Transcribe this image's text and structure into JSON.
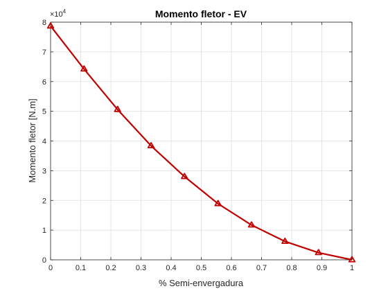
{
  "chart_data": {
    "type": "line",
    "title": "Momento fletor - EV",
    "xlabel": "% Semi-envergadura",
    "ylabel": "Momento fletor [N.m]",
    "y_exponent_base": "×10",
    "y_exponent_power": "4",
    "xlim": [
      0,
      1
    ],
    "ylim": [
      0,
      8
    ],
    "xticks": [
      "0",
      "0.1",
      "0.2",
      "0.3",
      "0.4",
      "0.5",
      "0.6",
      "0.7",
      "0.8",
      "0.9",
      "1"
    ],
    "yticks": [
      "0",
      "1",
      "2",
      "3",
      "4",
      "5",
      "6",
      "7",
      "8"
    ],
    "grid": true,
    "series": [
      {
        "color": "#c00000",
        "marker": "triangle",
        "x": [
          0,
          0.1111,
          0.2222,
          0.3333,
          0.4444,
          0.5556,
          0.6667,
          0.7778,
          0.8889,
          1.0
        ],
        "y": [
          7.87,
          6.42,
          5.06,
          3.84,
          2.8,
          1.89,
          1.17,
          0.62,
          0.24,
          0.0
        ]
      }
    ]
  }
}
